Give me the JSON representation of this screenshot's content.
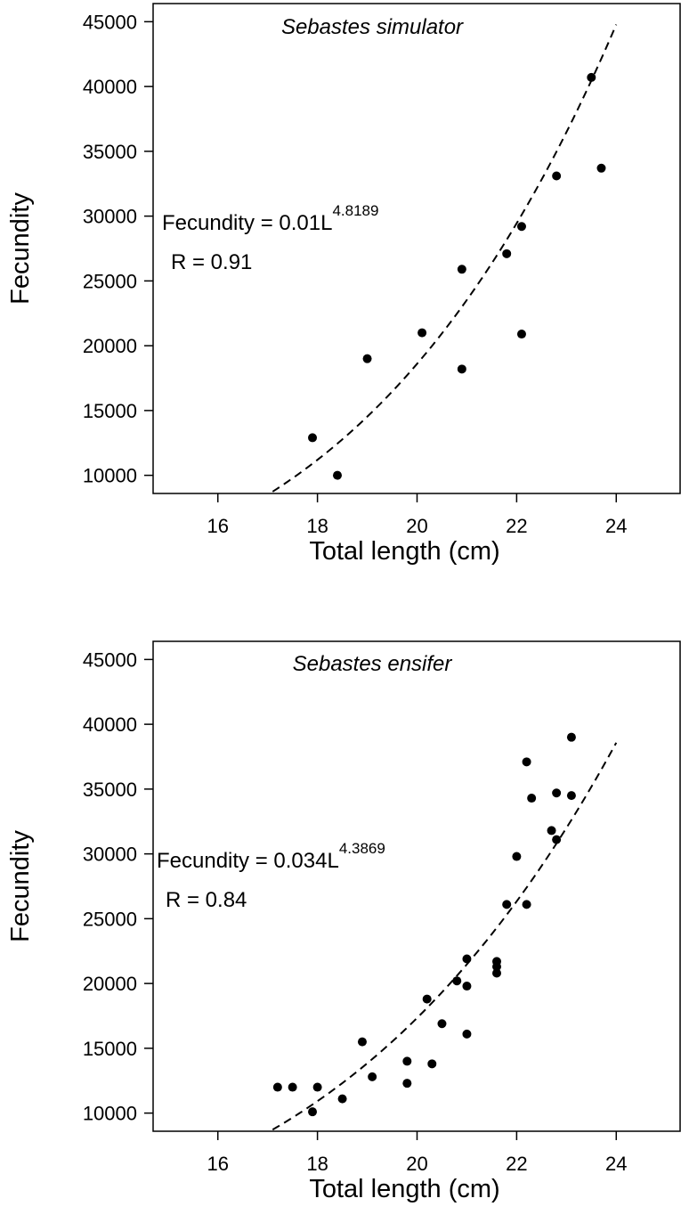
{
  "chart_data": [
    {
      "type": "scatter",
      "title": "Sebastes simulator",
      "xlabel": "Total length (cm)",
      "ylabel": "Fecundity",
      "xlim": [
        14.7,
        25.3
      ],
      "ylim": [
        8600,
        46400
      ],
      "xticks": [
        16,
        18,
        20,
        22,
        24
      ],
      "yticks": [
        10000,
        15000,
        20000,
        25000,
        30000,
        35000,
        40000,
        45000
      ],
      "equation": {
        "prefix": "Fecundity = 0.01L",
        "exponent": "4.8189"
      },
      "r_label": "R = 0.91",
      "fit": {
        "a": 0.01,
        "b": 4.8189,
        "x_range": [
          17.1,
          24.0
        ]
      },
      "points": [
        {
          "x": 17.9,
          "y": 12900
        },
        {
          "x": 18.4,
          "y": 10000
        },
        {
          "x": 19.0,
          "y": 19000
        },
        {
          "x": 20.1,
          "y": 21000
        },
        {
          "x": 20.9,
          "y": 25900
        },
        {
          "x": 20.9,
          "y": 18200
        },
        {
          "x": 21.8,
          "y": 27100
        },
        {
          "x": 22.1,
          "y": 29200
        },
        {
          "x": 22.1,
          "y": 20900
        },
        {
          "x": 22.8,
          "y": 33100
        },
        {
          "x": 23.5,
          "y": 40700
        },
        {
          "x": 23.7,
          "y": 33700
        }
      ]
    },
    {
      "type": "scatter",
      "title": "Sebastes ensifer",
      "xlabel": "Total length (cm)",
      "ylabel": "Fecundity",
      "xlim": [
        14.7,
        25.3
      ],
      "ylim": [
        8600,
        46400
      ],
      "xticks": [
        16,
        18,
        20,
        22,
        24
      ],
      "yticks": [
        10000,
        15000,
        20000,
        25000,
        30000,
        35000,
        40000,
        45000
      ],
      "equation": {
        "prefix": "Fecundity = 0.034L",
        "exponent": "4.3869"
      },
      "r_label": "R = 0.84",
      "fit": {
        "a": 0.034,
        "b": 4.3869,
        "x_range": [
          17.1,
          24.0
        ]
      },
      "points": [
        {
          "x": 17.2,
          "y": 12000
        },
        {
          "x": 17.5,
          "y": 12000
        },
        {
          "x": 17.9,
          "y": 10100
        },
        {
          "x": 18.0,
          "y": 12000
        },
        {
          "x": 18.5,
          "y": 11100
        },
        {
          "x": 18.9,
          "y": 15500
        },
        {
          "x": 19.1,
          "y": 12800
        },
        {
          "x": 19.8,
          "y": 14000
        },
        {
          "x": 19.8,
          "y": 12300
        },
        {
          "x": 20.2,
          "y": 18800
        },
        {
          "x": 20.3,
          "y": 13800
        },
        {
          "x": 20.5,
          "y": 16900
        },
        {
          "x": 20.8,
          "y": 20200
        },
        {
          "x": 21.0,
          "y": 21900
        },
        {
          "x": 21.0,
          "y": 19800
        },
        {
          "x": 21.0,
          "y": 16100
        },
        {
          "x": 21.6,
          "y": 21700
        },
        {
          "x": 21.6,
          "y": 21300
        },
        {
          "x": 21.6,
          "y": 20800
        },
        {
          "x": 21.8,
          "y": 26100
        },
        {
          "x": 22.0,
          "y": 29800
        },
        {
          "x": 22.2,
          "y": 37100
        },
        {
          "x": 22.2,
          "y": 26100
        },
        {
          "x": 22.3,
          "y": 34300
        },
        {
          "x": 22.7,
          "y": 31800
        },
        {
          "x": 22.8,
          "y": 34700
        },
        {
          "x": 22.8,
          "y": 31100
        },
        {
          "x": 23.1,
          "y": 39000
        },
        {
          "x": 23.1,
          "y": 34500
        }
      ]
    }
  ]
}
